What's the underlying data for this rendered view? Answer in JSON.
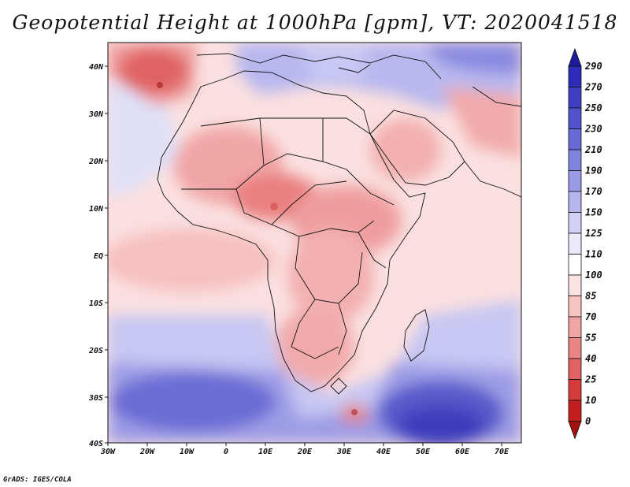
{
  "title": "Geopotential Height at 1000hPa [gpm], VT: 2020041518",
  "footer": "GrADS: IGES/COLA",
  "map": {
    "region": "Africa",
    "variable": "Geopotential Height",
    "level": "1000hPa",
    "units": "gpm",
    "valid_time": "2020041518",
    "lon_labels": [
      "30W",
      "20W",
      "10W",
      "0",
      "10E",
      "20E",
      "30E",
      "40E",
      "50E",
      "60E",
      "70E"
    ],
    "lat_labels": [
      "40N",
      "30N",
      "20N",
      "10N",
      "EQ",
      "10S",
      "20S",
      "30S",
      "40S"
    ]
  },
  "colorbar": {
    "levels": [
      "290",
      "270",
      "250",
      "230",
      "210",
      "190",
      "170",
      "150",
      "125",
      "110",
      "100",
      "85",
      "70",
      "55",
      "40",
      "25",
      "10",
      "0"
    ],
    "colors": [
      "#1e1a9c",
      "#2c2ab6",
      "#3f3fc4",
      "#5252cc",
      "#6868d6",
      "#8181de",
      "#9a9ae6",
      "#b6b6ef",
      "#d2d2f7",
      "#eaeafb",
      "#ffffff",
      "#fce3e3",
      "#f7c4c4",
      "#f0a5a5",
      "#e98585",
      "#e06262",
      "#d43c3c",
      "#c21e1e",
      "#a80f0f"
    ]
  }
}
